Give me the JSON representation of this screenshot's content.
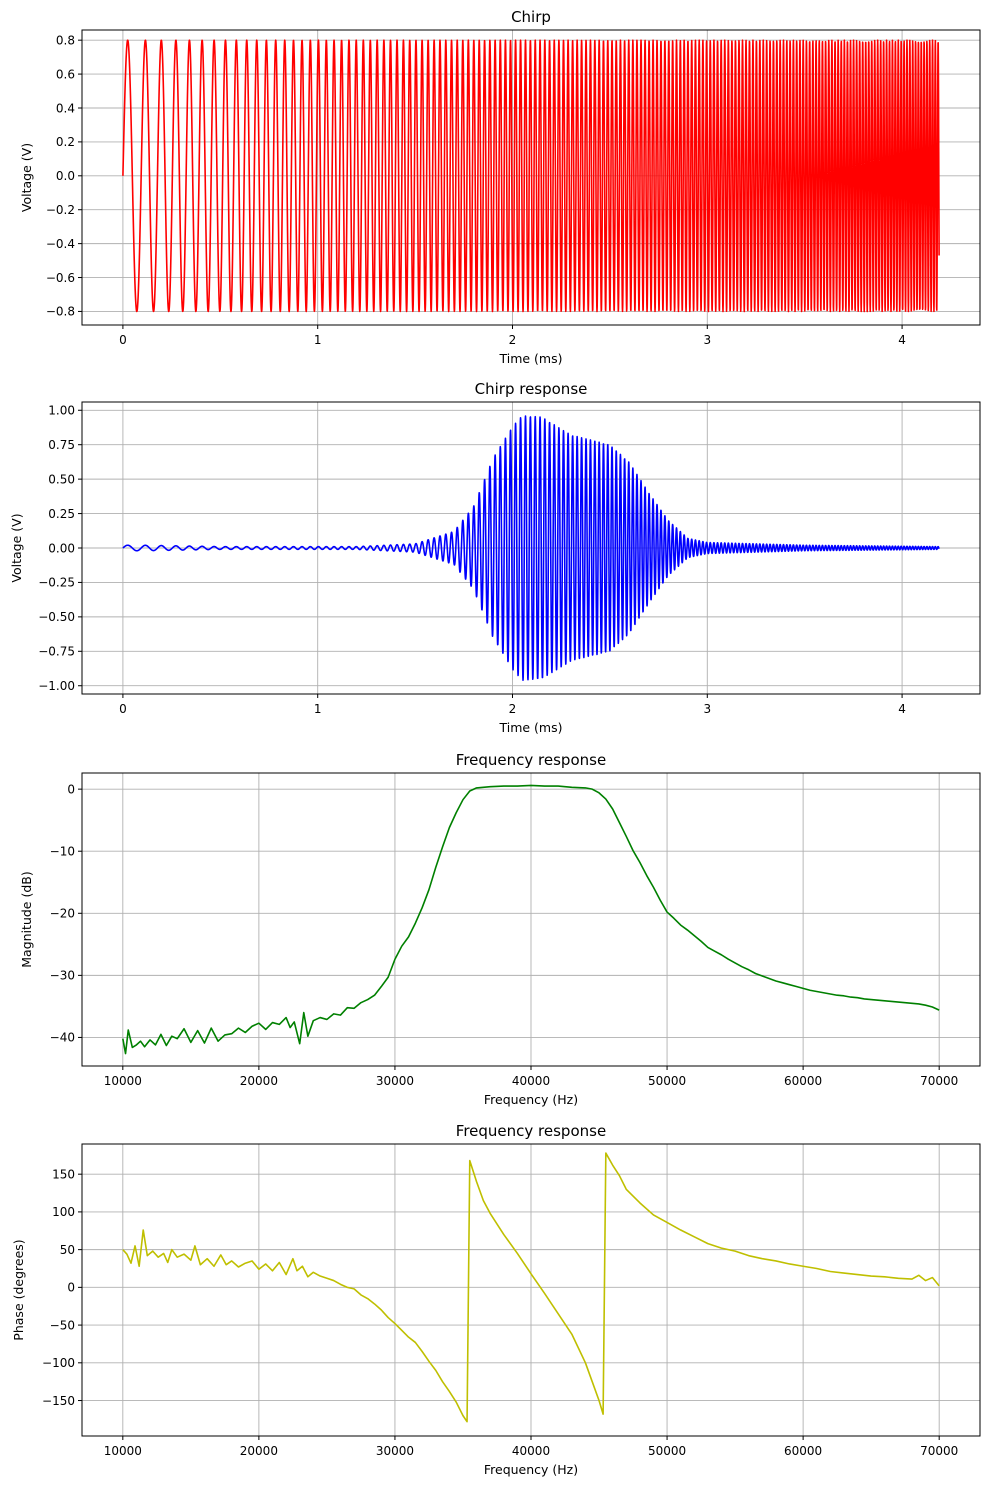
{
  "chart_data": [
    {
      "type": "line",
      "title": "Chirp",
      "xlabel": "Time (ms)",
      "ylabel": "Voltage (V)",
      "xlim": [
        -0.21,
        4.4
      ],
      "ylim": [
        -0.88,
        0.86
      ],
      "xticks": [
        0,
        1,
        2,
        3,
        4
      ],
      "yticks": [
        -0.8,
        -0.6,
        -0.4,
        -0.2,
        0.0,
        0.2,
        0.4,
        0.6,
        0.8
      ],
      "ytick_decimals": 1,
      "grid": true,
      "color": "#ff0000",
      "series": [
        {
          "kind": "linear-chirp",
          "amplitude": 0.8,
          "t_start_ms": 0,
          "t_end_ms": 4.19,
          "f_start_khz": 10,
          "f_end_khz": 70,
          "points": 4600
        }
      ]
    },
    {
      "type": "line",
      "title": "Chirp response",
      "xlabel": "Time (ms)",
      "ylabel": "Voltage (V)",
      "xlim": [
        -0.21,
        4.4
      ],
      "ylim": [
        -1.06,
        1.06
      ],
      "xticks": [
        0,
        1,
        2,
        3,
        4
      ],
      "yticks": [
        -1.0,
        -0.75,
        -0.5,
        -0.25,
        0.0,
        0.25,
        0.5,
        0.75,
        1.0
      ],
      "ytick_decimals": 2,
      "grid": true,
      "color": "#0000ff",
      "series": [
        {
          "kind": "chirp-response",
          "t_start_ms": 0,
          "t_end_ms": 4.19,
          "f_start_khz": 10,
          "f_end_khz": 70,
          "points": 4600,
          "envelope_ms": [
            0,
            0.1,
            0.5,
            1.2,
            1.5,
            1.7,
            1.8,
            1.9,
            2.0,
            2.05,
            2.15,
            2.3,
            2.5,
            2.6,
            2.7,
            2.8,
            2.9,
            3.0,
            3.5,
            4.19
          ],
          "envelope_v": [
            0.02,
            0.02,
            0.01,
            0.01,
            0.03,
            0.12,
            0.3,
            0.65,
            0.88,
            0.96,
            0.95,
            0.82,
            0.75,
            0.62,
            0.4,
            0.2,
            0.07,
            0.04,
            0.02,
            0.01
          ]
        }
      ]
    },
    {
      "type": "line",
      "title": "Frequency response",
      "xlabel": "Frequency (Hz)",
      "ylabel": "Magnitude (dB)",
      "xlim": [
        7000,
        73000
      ],
      "ylim": [
        -44.6,
        2.6
      ],
      "xticks": [
        10000,
        20000,
        30000,
        40000,
        50000,
        60000,
        70000
      ],
      "yticks": [
        -40,
        -30,
        -20,
        -10,
        0
      ],
      "ytick_decimals": 0,
      "grid": true,
      "color": "#008000",
      "series": [
        {
          "x": [
            10000,
            10200,
            10400,
            10700,
            11000,
            11300,
            11600,
            12000,
            12400,
            12800,
            13200,
            13600,
            14000,
            14500,
            15000,
            15500,
            16000,
            16500,
            17000,
            17500,
            18000,
            18500,
            19000,
            19500,
            20000,
            20500,
            21000,
            21500,
            22000,
            22300,
            22600,
            23000,
            23300,
            23600,
            24000,
            24500,
            25000,
            25500,
            26000,
            26500,
            27000,
            27500,
            28000,
            28500,
            29000,
            29500,
            30000,
            30500,
            31000,
            31500,
            32000,
            32500,
            33000,
            33500,
            34000,
            34500,
            35000,
            35500,
            36000,
            37000,
            38000,
            39000,
            40000,
            41000,
            42000,
            43000,
            44000,
            44500,
            45000,
            45500,
            46000,
            46500,
            47000,
            47500,
            48000,
            48500,
            49000,
            49500,
            50000,
            50500,
            51000,
            51500,
            52000,
            52500,
            53000,
            53500,
            54000,
            54500,
            55000,
            55500,
            56000,
            56500,
            57000,
            57500,
            58000,
            58500,
            59000,
            59500,
            60000,
            60500,
            61000,
            61500,
            62000,
            62500,
            63000,
            63500,
            64000,
            64500,
            65000,
            65500,
            66000,
            66500,
            67000,
            67500,
            68000,
            68500,
            69000,
            69500,
            70000
          ],
          "y": [
            -40.2,
            -42.6,
            -38.8,
            -41.6,
            -41.2,
            -40.6,
            -41.5,
            -40.4,
            -41.2,
            -39.5,
            -41.3,
            -39.8,
            -40.2,
            -38.6,
            -40.8,
            -38.9,
            -40.9,
            -38.5,
            -40.6,
            -39.6,
            -39.4,
            -38.5,
            -39.2,
            -38.2,
            -37.7,
            -38.7,
            -37.6,
            -37.9,
            -36.8,
            -38.4,
            -37.5,
            -41.0,
            -36.0,
            -39.8,
            -37.3,
            -36.8,
            -37.1,
            -36.2,
            -36.4,
            -35.2,
            -35.3,
            -34.4,
            -33.9,
            -33.2,
            -31.8,
            -30.3,
            -27.4,
            -25.3,
            -23.8,
            -21.6,
            -19.1,
            -16.2,
            -12.6,
            -9.3,
            -6.2,
            -3.8,
            -1.7,
            -0.3,
            0.2,
            0.4,
            0.5,
            0.5,
            0.6,
            0.5,
            0.5,
            0.3,
            0.2,
            0.0,
            -0.6,
            -1.6,
            -3.2,
            -5.4,
            -7.6,
            -9.9,
            -11.8,
            -13.9,
            -15.8,
            -17.9,
            -19.8,
            -20.8,
            -21.9,
            -22.7,
            -23.6,
            -24.5,
            -25.5,
            -26.1,
            -26.7,
            -27.4,
            -28.0,
            -28.6,
            -29.1,
            -29.7,
            -30.1,
            -30.5,
            -30.9,
            -31.2,
            -31.5,
            -31.8,
            -32.1,
            -32.4,
            -32.6,
            -32.8,
            -33.0,
            -33.2,
            -33.3,
            -33.5,
            -33.6,
            -33.8,
            -33.9,
            -34.0,
            -34.1,
            -34.2,
            -34.3,
            -34.4,
            -34.5,
            -34.6,
            -34.8,
            -35.1,
            -35.6
          ]
        }
      ]
    },
    {
      "type": "line",
      "title": "Frequency response",
      "xlabel": "Frequency (Hz)",
      "ylabel": "Phase (degrees)",
      "xlim": [
        7000,
        73000
      ],
      "ylim": [
        -197,
        190
      ],
      "xticks": [
        10000,
        20000,
        30000,
        40000,
        50000,
        60000,
        70000
      ],
      "yticks": [
        -150,
        -100,
        -50,
        0,
        50,
        100,
        150
      ],
      "ytick_decimals": 0,
      "grid": true,
      "color": "#bfbf00",
      "series": [
        {
          "x": [
            10000,
            10300,
            10600,
            10900,
            11200,
            11500,
            11800,
            12200,
            12600,
            13000,
            13300,
            13600,
            14000,
            14500,
            15000,
            15300,
            15700,
            16200,
            16700,
            17200,
            17600,
            18000,
            18500,
            19000,
            19500,
            20000,
            20500,
            21000,
            21500,
            22000,
            22500,
            22800,
            23200,
            23600,
            24000,
            24500,
            25000,
            25500,
            26000,
            26500,
            27000,
            27500,
            28000,
            28500,
            29000,
            29500,
            30000,
            30500,
            31000,
            31500,
            32000,
            32500,
            33000,
            33500,
            34000,
            34500,
            35000,
            35300,
            35500,
            36000,
            36500,
            37000,
            38000,
            39000,
            40000,
            41000,
            42000,
            43000,
            44000,
            44500,
            45000,
            45300,
            45500,
            46000,
            46500,
            47000,
            48000,
            49000,
            50000,
            51000,
            52000,
            53000,
            54000,
            55000,
            56000,
            57000,
            58000,
            59000,
            60000,
            61000,
            62000,
            63000,
            64000,
            65000,
            66000,
            67000,
            68000,
            68500,
            69000,
            69500,
            70000
          ],
          "y": [
            50,
            44,
            32,
            55,
            28,
            76,
            42,
            48,
            40,
            45,
            33,
            50,
            40,
            44,
            36,
            55,
            30,
            38,
            28,
            43,
            30,
            35,
            27,
            32,
            35,
            24,
            31,
            22,
            33,
            17,
            38,
            22,
            28,
            14,
            20,
            15,
            12,
            9,
            4,
            0,
            -2,
            -10,
            -15,
            -22,
            -30,
            -40,
            -48,
            -57,
            -66,
            -73,
            -85,
            -98,
            -110,
            -125,
            -138,
            -152,
            -170,
            -178,
            168,
            140,
            115,
            98,
            70,
            45,
            18,
            -8,
            -35,
            -62,
            -100,
            -125,
            -150,
            -168,
            178,
            162,
            148,
            130,
            112,
            96,
            86,
            76,
            67,
            58,
            52,
            48,
            42,
            38,
            35,
            31,
            28,
            25,
            21,
            19,
            17,
            15,
            14,
            12,
            11,
            16,
            9,
            13,
            2
          ]
        }
      ]
    }
  ]
}
